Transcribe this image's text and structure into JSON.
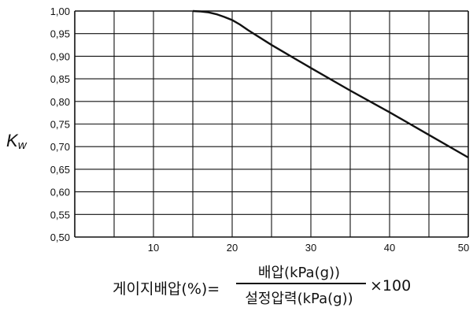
{
  "chart_data": {
    "type": "line",
    "ylabel_main": "K",
    "ylabel_sub": "w",
    "xlim": [
      0,
      50
    ],
    "ylim": [
      0.5,
      1.0
    ],
    "grid": true,
    "x_ticks": [
      10,
      20,
      30,
      40,
      50
    ],
    "y_ticks": [
      0.5,
      0.55,
      0.6,
      0.65,
      0.7,
      0.75,
      0.8,
      0.85,
      0.9,
      0.95,
      1.0
    ],
    "y_tick_labels": [
      "0,50",
      "0,55",
      "0,60",
      "0,65",
      "0,70",
      "0,75",
      "0,80",
      "0,85",
      "0,90",
      "0,95",
      "1,00"
    ],
    "series": [
      {
        "x": [
          15,
          16,
          17,
          18,
          19,
          20,
          21,
          22,
          25,
          30,
          35,
          40,
          45,
          50
        ],
        "values": [
          1.0,
          0.999,
          0.997,
          0.993,
          0.987,
          0.98,
          0.97,
          0.958,
          0.925,
          0.874,
          0.824,
          0.776,
          0.726,
          0.676
        ]
      }
    ],
    "line_color": "#111111"
  },
  "formula": {
    "left": "게이지배압(%)=",
    "numerator": "배압(kPa(g))",
    "denominator": "설정압력(kPa(g))",
    "right": "×100"
  }
}
